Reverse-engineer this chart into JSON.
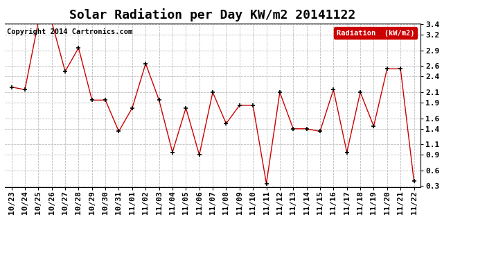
{
  "title": "Solar Radiation per Day KW/m2 20141122",
  "copyright_text": "Copyright 2014 Cartronics.com",
  "legend_label": "Radiation  (kW/m2)",
  "labels": [
    "10/23",
    "10/24",
    "10/25",
    "10/26",
    "10/27",
    "10/28",
    "10/29",
    "10/30",
    "10/31",
    "11/01",
    "11/02",
    "11/03",
    "11/04",
    "11/05",
    "11/06",
    "11/07",
    "11/08",
    "11/09",
    "11/10",
    "11/11",
    "11/12",
    "11/13",
    "11/14",
    "11/15",
    "11/16",
    "11/17",
    "11/18",
    "11/19",
    "11/20",
    "11/21",
    "11/22"
  ],
  "values": [
    2.2,
    2.15,
    3.45,
    3.45,
    2.5,
    2.95,
    1.95,
    1.95,
    1.35,
    1.8,
    2.65,
    1.95,
    0.95,
    1.8,
    0.9,
    2.1,
    1.5,
    1.85,
    1.85,
    0.35,
    2.1,
    1.4,
    1.4,
    1.35,
    2.15,
    0.95,
    2.1,
    1.45,
    2.55,
    2.55,
    0.4
  ],
  "line_color": "#cc0000",
  "marker_color": "#000000",
  "bg_color": "#ffffff",
  "grid_color": "#aaaaaa",
  "ylim_min": 0.3,
  "ylim_max": 3.4,
  "yticks": [
    0.3,
    0.6,
    0.9,
    1.1,
    1.4,
    1.6,
    1.9,
    2.1,
    2.4,
    2.6,
    2.9,
    3.2,
    3.4
  ],
  "legend_bg": "#cc0000",
  "legend_text_color": "#ffffff",
  "title_fontsize": 13,
  "tick_fontsize": 8,
  "copyright_fontsize": 7.5
}
